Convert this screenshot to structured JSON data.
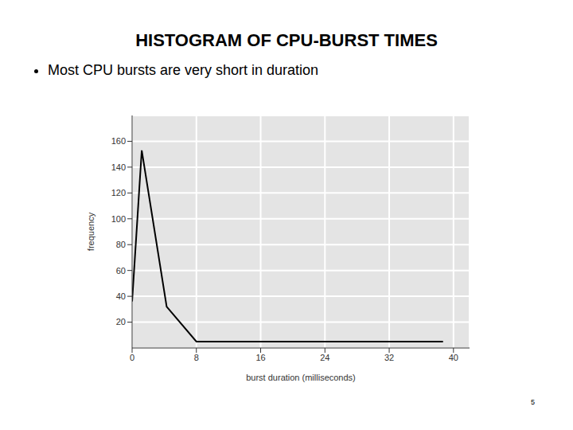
{
  "chart_data": {
    "type": "line",
    "title": "HISTOGRAM OF CPU-BURST TIMES",
    "subtitle": "Most CPU bursts are very short in duration",
    "x_label": "burst duration (milliseconds)",
    "y_label": "frequency",
    "x": [
      0,
      1.2,
      4.3,
      8,
      38.7
    ],
    "values": [
      36,
      153,
      32,
      5,
      5
    ],
    "color": "#000000",
    "xlim": [
      0,
      42
    ],
    "xticks": [
      0,
      8,
      16,
      24,
      32,
      40
    ],
    "ylim": [
      0,
      180
    ],
    "yticks": [
      20,
      40,
      60,
      80,
      100,
      120,
      140,
      160
    ],
    "grid": true
  },
  "slide": {
    "page_number": "5"
  }
}
